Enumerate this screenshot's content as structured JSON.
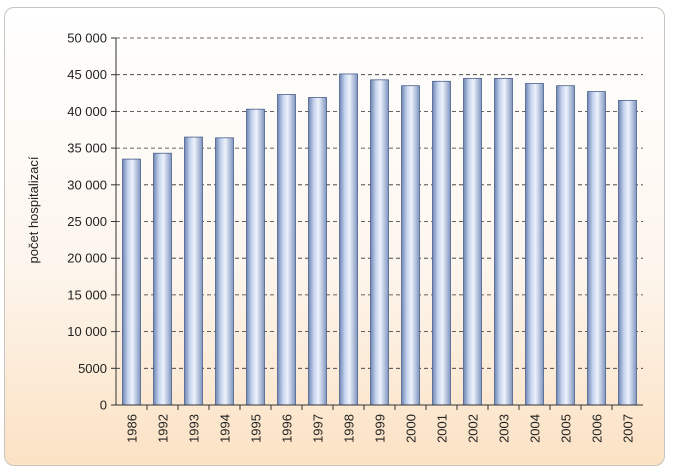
{
  "chart_data": {
    "type": "bar",
    "title": "",
    "xlabel": "",
    "ylabel": "počet hospitalizací",
    "ylim": [
      0,
      50000
    ],
    "yticks": [
      0,
      5000,
      10000,
      15000,
      20000,
      25000,
      30000,
      35000,
      40000,
      45000,
      50000
    ],
    "ytick_labels": [
      "0",
      "5000",
      "10 000",
      "15 000",
      "20 000",
      "25 000",
      "30 000",
      "35 000",
      "40 000",
      "45 000",
      "50 000"
    ],
    "grid": "horizontal dashed",
    "legend": "none",
    "bar_color": "#b8c9e6",
    "categories": [
      "1986",
      "1992",
      "1993",
      "1994",
      "1995",
      "1996",
      "1997",
      "1998",
      "1999",
      "2000",
      "2001",
      "2002",
      "2003",
      "2004",
      "2005",
      "2006",
      "2007"
    ],
    "values": [
      33500,
      34300,
      36500,
      36400,
      40300,
      42300,
      41900,
      45100,
      44300,
      43500,
      44100,
      44500,
      44500,
      43800,
      43500,
      42700,
      41500
    ]
  }
}
